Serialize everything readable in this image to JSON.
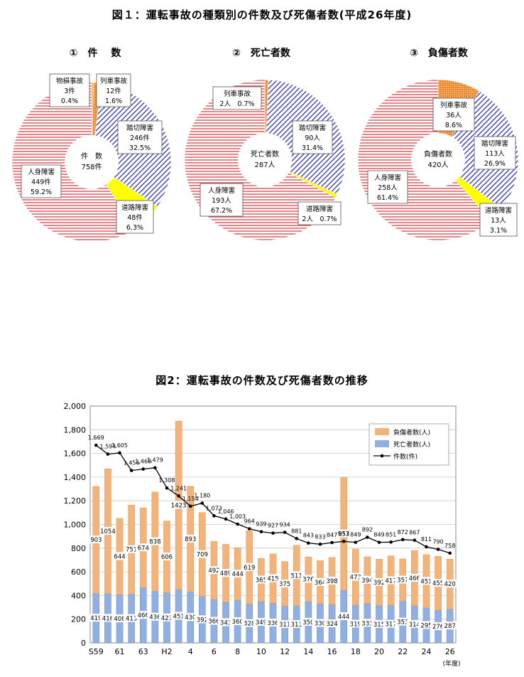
{
  "figure1": {
    "title": "図１：運転事故の種類別の件数及び死傷者数(平成26年度)",
    "pies": [
      {
        "subtitle": "①　件　 数",
        "center": [
          "件　数",
          "758件"
        ],
        "slices": [
          {
            "name": "物損事故",
            "value": 3,
            "text": [
              "物損事故",
              "3件",
              "0.4%"
            ],
            "color": "#e8a03c",
            "pattern": "dots"
          },
          {
            "name": "列車事故",
            "value": 12,
            "text": [
              "列車事故",
              "12件",
              "1.6%"
            ],
            "color": "#f28a2e",
            "pattern": "dots"
          },
          {
            "name": "踏切障害",
            "value": 246,
            "text": [
              "踏切障害",
              "246件",
              "32.5%"
            ],
            "color": "#2f2fb8",
            "pattern": "diag"
          },
          {
            "name": "道路障害",
            "value": 48,
            "text": [
              "道路障害",
              "48件",
              "6.3%"
            ],
            "color": "#ffff00",
            "pattern": "solid"
          },
          {
            "name": "人身障害",
            "value": 449,
            "text": [
              "人身障害",
              "449件",
              "59.2%"
            ],
            "color": "#d9414a",
            "pattern": "hlines"
          }
        ]
      },
      {
        "subtitle": "②　死亡者数",
        "center": [
          "死亡者数",
          "287人"
        ],
        "slices": [
          {
            "name": "列車事故",
            "value": 2,
            "text": [
              "列車事故",
              "2人　0.7%"
            ],
            "color": "#f28a2e",
            "pattern": "dots"
          },
          {
            "name": "踏切障害",
            "value": 90,
            "text": [
              "踏切障害",
              "90人",
              "31.4%"
            ],
            "color": "#2f2fb8",
            "pattern": "diag"
          },
          {
            "name": "道路障害",
            "value": 2,
            "text": [
              "道路障害",
              "2人　0.7%"
            ],
            "color": "#ffff00",
            "pattern": "solid"
          },
          {
            "name": "人身障害",
            "value": 193,
            "text": [
              "人身障害",
              "193人",
              "67.2%"
            ],
            "color": "#d9414a",
            "pattern": "hlines"
          }
        ]
      },
      {
        "subtitle": "③　負傷者数",
        "center": [
          "負傷者数",
          "420人"
        ],
        "slices": [
          {
            "name": "列車事故",
            "value": 36,
            "text": [
              "列車事故",
              "36人",
              "8.6%"
            ],
            "color": "#f28a2e",
            "pattern": "dots"
          },
          {
            "name": "踏切障害",
            "value": 113,
            "text": [
              "踏切障害",
              "113人",
              "26.9%"
            ],
            "color": "#2f2fb8",
            "pattern": "diag"
          },
          {
            "name": "道路障害",
            "value": 13,
            "text": [
              "道路障害",
              "13人",
              "3.1%"
            ],
            "color": "#ffff00",
            "pattern": "solid"
          },
          {
            "name": "人身障害",
            "value": 258,
            "text": [
              "人身障害",
              "258人",
              "61.4%"
            ],
            "color": "#d9414a",
            "pattern": "hlines"
          }
        ]
      }
    ]
  },
  "figure2": {
    "title": "図2：運転事故の件数及び死傷者数の推移",
    "x_unit": "(年度)"
  },
  "chart_data": {
    "type": "bar",
    "title": "図2：運転事故の件数及び死傷者数の推移",
    "ylim": [
      0,
      2000
    ],
    "yticks": [
      "0",
      "200",
      "400",
      "600",
      "800",
      "1,000",
      "1,200",
      "1,400",
      "1,600",
      "1,800",
      "2,000"
    ],
    "xtick_labels": [
      "S59",
      "",
      "61",
      "",
      "63",
      "",
      "H2",
      "",
      "4",
      "",
      "6",
      "",
      "8",
      "",
      "10",
      "",
      "12",
      "",
      "14",
      "",
      "16",
      "",
      "18",
      "",
      "20",
      "",
      "22",
      "",
      "24",
      "",
      "26"
    ],
    "xlabel": "(年度)",
    "legend_position": "top-right",
    "series": [
      {
        "name": "負傷者数(人)",
        "kind": "stacked-bar-top",
        "color": "#f2b47a",
        "values": [
          903,
          1054,
          644,
          751,
          674,
          838,
          606,
          1423,
          893,
          709,
          492,
          489,
          444,
          619,
          365,
          415,
          375,
          511,
          376,
          364,
          398,
          953,
          473,
          394,
          392,
          417,
          357,
          466,
          451,
          455,
          420
        ]
      },
      {
        "name": "死亡者数(人)",
        "kind": "stacked-bar-bottom",
        "color": "#8fb0e0",
        "values": [
          419,
          416,
          408,
          413,
          466,
          436,
          423,
          451,
          430,
          392,
          366,
          343,
          360,
          328,
          349,
          336,
          311,
          313,
          350,
          330,
          324,
          444,
          319,
          333,
          315,
          317,
          353,
          314,
          295,
          276,
          287
        ]
      },
      {
        "name": "件数(件)",
        "kind": "line",
        "color": "#000000",
        "values": [
          1669,
          1594,
          1605,
          1456,
          1468,
          1479,
          1308,
          1241,
          1154,
          1180,
          1073,
          1046,
          1003,
          964,
          939,
          927,
          934,
          881,
          843,
          833,
          847,
          857,
          849,
          892,
          849,
          851,
          872,
          867,
          811,
          790,
          758
        ],
        "labels": [
          "1,669",
          "1,594",
          "1,605",
          "1,456",
          "1,468",
          "1,479",
          "1,308",
          "1,241",
          "1,154",
          "1,180",
          "1,073",
          "1,046",
          "1,003",
          "964",
          "939",
          "927",
          "934",
          "881",
          "843",
          "833",
          "847",
          "857",
          "849",
          "892",
          "849",
          "851",
          "872",
          "867",
          "811",
          "790",
          "758"
        ]
      }
    ]
  }
}
